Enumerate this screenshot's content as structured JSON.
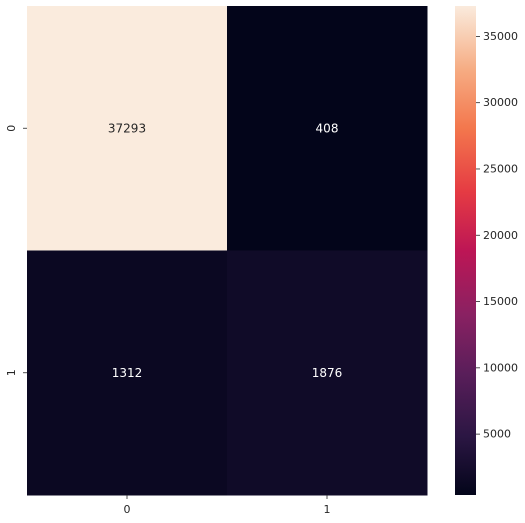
{
  "chart_data": {
    "type": "heatmap",
    "colormap": "rocket",
    "x_categories": [
      "0",
      "1"
    ],
    "y_categories": [
      "0",
      "1"
    ],
    "values": [
      [
        37293,
        408
      ],
      [
        1312,
        1876
      ]
    ],
    "value_labels": [
      [
        "37293",
        "408"
      ],
      [
        "1312",
        "1876"
      ]
    ],
    "colorbar": {
      "min": 408,
      "max": 37293,
      "ticks": [
        5000,
        10000,
        15000,
        20000,
        25000,
        30000,
        35000
      ],
      "tick_labels": [
        "5000",
        "10000",
        "15000",
        "20000",
        "25000",
        "30000",
        "35000"
      ]
    },
    "title": "",
    "xlabel": "",
    "ylabel": ""
  }
}
